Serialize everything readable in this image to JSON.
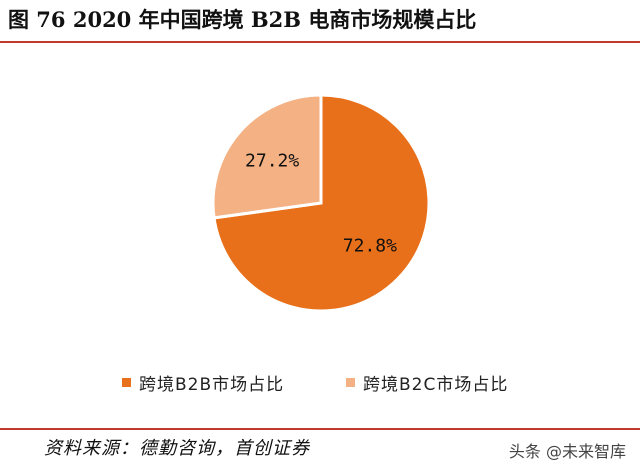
{
  "title": "图 76 2020 年中国跨境 B2B 电商市场规模占比",
  "chart_data": {
    "type": "pie",
    "slices": [
      {
        "label": "跨境B2B市场占比",
        "value": 72.8,
        "display": "72.8%",
        "color": "#e8701a"
      },
      {
        "label": "跨境B2C市场占比",
        "value": 27.2,
        "display": "27.2%",
        "color": "#f4b183"
      }
    ],
    "legend_position": "bottom"
  },
  "source": "资料来源：德勤咨询，首创证券",
  "watermark": "头条 @未来智库"
}
